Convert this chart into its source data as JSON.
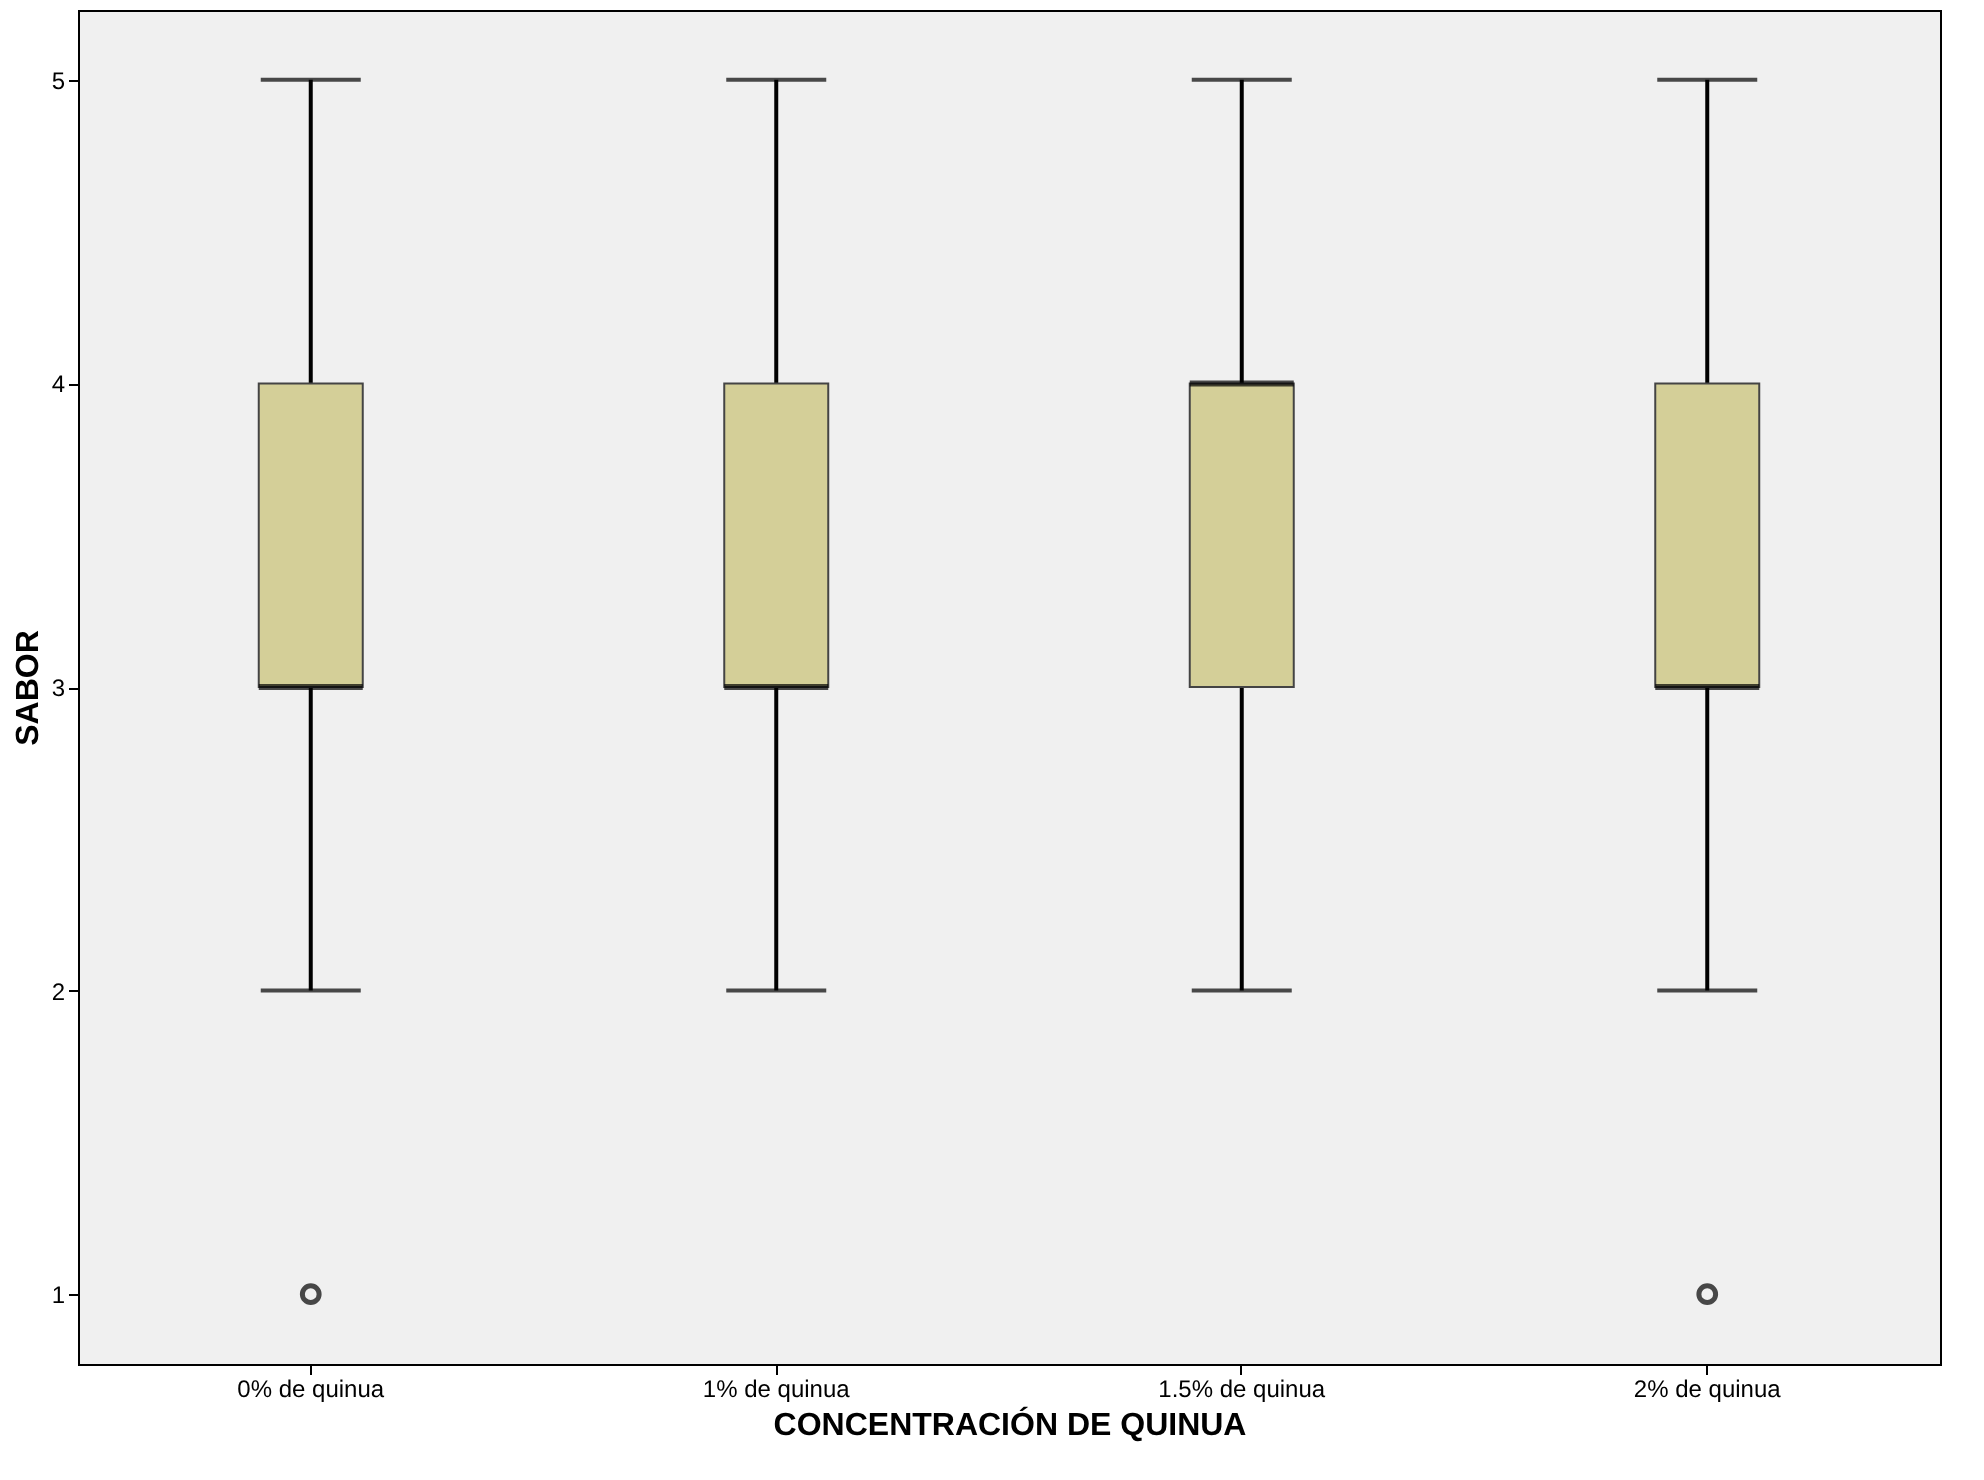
{
  "chart_data": {
    "type": "box",
    "xlabel": "CONCENTRACIÓN DE QUINUA",
    "ylabel": "SABOR",
    "categories": [
      "0% de quinua",
      "1% de quinua",
      "1.5% de quinua",
      "2% de quinua"
    ],
    "color": "#d4cf98",
    "boxes": [
      {
        "low": 2,
        "q1": 3,
        "median": 3,
        "q3": 4,
        "high": 5,
        "outliers": [
          1
        ]
      },
      {
        "low": 2,
        "q1": 3,
        "median": 3,
        "q3": 4,
        "high": 5
      },
      {
        "low": 2,
        "q1": 3,
        "median": 4,
        "q3": 4,
        "high": 5
      },
      {
        "low": 2,
        "q1": 3,
        "median": 3,
        "q3": 4,
        "high": 5,
        "outliers": [
          1
        ]
      }
    ],
    "ylim": [
      0.77,
      5.23
    ],
    "yticks": [
      1,
      2,
      3,
      4,
      5
    ]
  }
}
